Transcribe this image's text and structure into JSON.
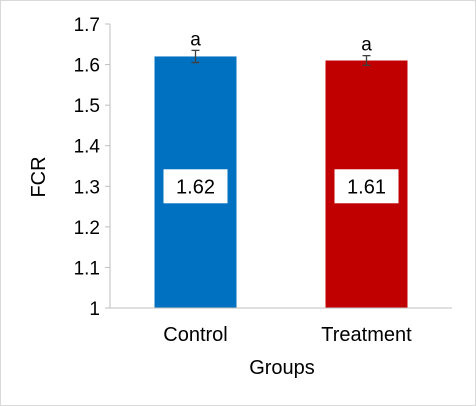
{
  "chart_data": {
    "type": "bar",
    "title": "",
    "xlabel": "Groups",
    "ylabel": "FCR",
    "ylim": [
      1,
      1.7
    ],
    "yticks": [
      "1",
      "1.1",
      "1.2",
      "1.3",
      "1.4",
      "1.5",
      "1.6",
      "1.7"
    ],
    "categories": [
      "Control",
      "Treatment"
    ],
    "values": [
      1.62,
      1.61
    ],
    "value_labels": [
      "1.62",
      "1.61"
    ],
    "errors": [
      0.015,
      0.012
    ],
    "significance_letters": [
      "a",
      "a"
    ],
    "colors": [
      "#0070c0",
      "#c00000"
    ],
    "grid": false,
    "legend": "none"
  }
}
